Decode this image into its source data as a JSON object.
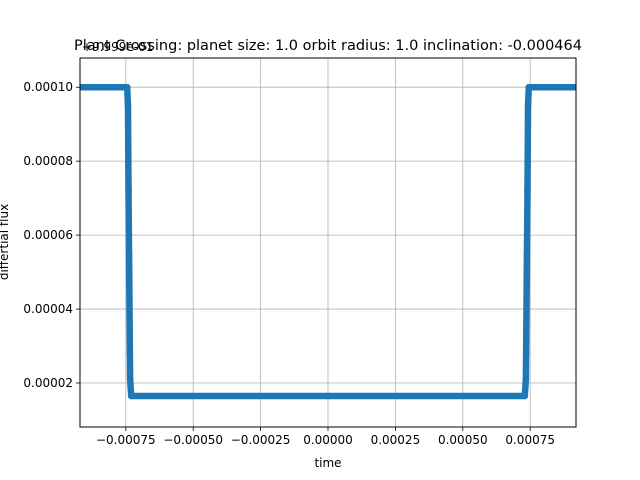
{
  "chart_data": {
    "type": "scatter",
    "title": "Plant Crossing: planet size: 1.0 orbit radius: 1.0 inclination: -0.000464",
    "xlabel": "time",
    "ylabel": "differtial flux",
    "offset_label": "+9.999e-01",
    "xlim": [
      -0.00092,
      0.00092
    ],
    "ylim": [
      8.1e-06,
      0.0001079
    ],
    "grid": true,
    "x_ticks": [
      -0.00075,
      -0.0005,
      -0.00025,
      0.0,
      0.00025,
      0.0005,
      0.00075
    ],
    "x_tick_labels": [
      "−0.00075",
      "−0.00050",
      "−0.00025",
      "0.00000",
      "0.00025",
      "0.00050",
      "0.00075"
    ],
    "y_ticks": [
      2e-05,
      4e-05,
      6e-05,
      8e-05,
      0.0001
    ],
    "y_tick_labels": [
      "0.00002",
      "0.00004",
      "0.00006",
      "0.00008",
      "0.00010"
    ],
    "series": [
      {
        "color": "#1f77b4",
        "x": [
          -0.00092,
          -0.00075,
          -0.000745,
          -0.000742,
          -0.000741,
          -0.00074,
          -0.000739,
          -0.000738,
          -0.000737,
          -0.000736,
          -0.000735,
          -0.000734,
          -0.00073,
          0.0,
          0.00073,
          0.000734,
          0.000735,
          0.000736,
          0.000737,
          0.000738,
          0.000739,
          0.00074,
          0.000741,
          0.000742,
          0.000745,
          0.00075,
          0.00092
        ],
        "y": [
          0.0001,
          0.0001,
          0.0001,
          9.5e-05,
          8.3e-05,
          7.2e-05,
          6.3e-05,
          5.5e-05,
          4.6e-05,
          3.7e-05,
          2.8e-05,
          2.1e-05,
          1.65e-05,
          1.65e-05,
          1.65e-05,
          2.1e-05,
          2.8e-05,
          3.7e-05,
          4.6e-05,
          5.5e-05,
          6.3e-05,
          7.2e-05,
          8.3e-05,
          9.5e-05,
          0.0001,
          0.0001,
          0.0001
        ]
      }
    ]
  }
}
